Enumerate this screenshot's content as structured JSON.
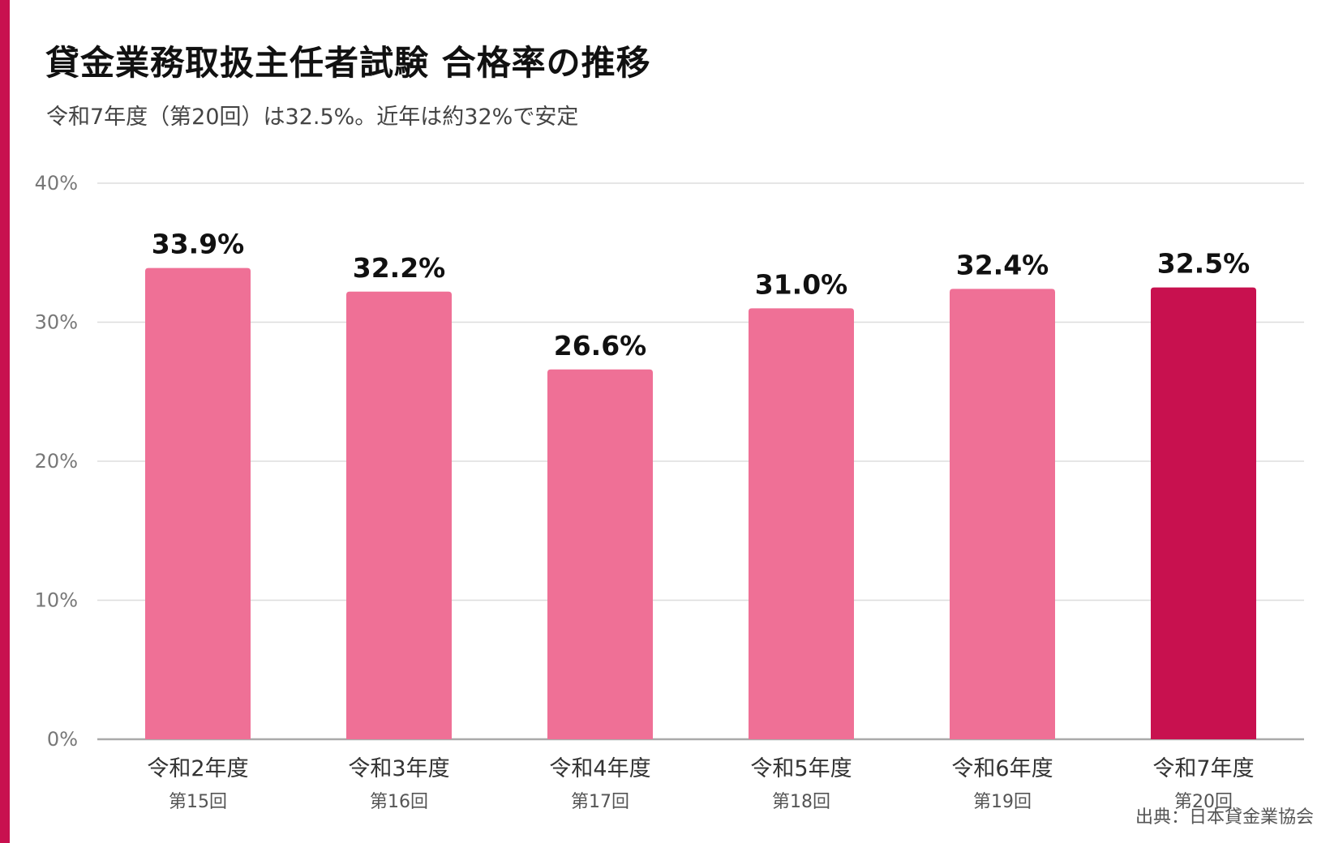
{
  "colors": {
    "accent": "#c8114f",
    "bar": "#ef7096",
    "bar_highlight": "#c8114f",
    "grid": "#dddddd",
    "axis": "#aaaaaa"
  },
  "chart_data": {
    "type": "bar",
    "title": "貸金業務取扱主任者試験 合格率の推移",
    "subtitle": "令和7年度（第20回）は32.5%。近年は約32%で安定",
    "categories": [
      "令和2年度",
      "令和3年度",
      "令和4年度",
      "令和5年度",
      "令和6年度",
      "令和7年度"
    ],
    "category_sublabels": [
      "第15回",
      "第16回",
      "第17回",
      "第18回",
      "第19回",
      "第20回"
    ],
    "values": [
      33.9,
      32.2,
      26.6,
      31.0,
      32.4,
      32.5
    ],
    "value_labels": [
      "33.9%",
      "32.2%",
      "26.6%",
      "31.0%",
      "32.4%",
      "32.5%"
    ],
    "highlight_index": 5,
    "ylim": [
      0,
      40
    ],
    "yticks": [
      0,
      10,
      20,
      30,
      40
    ],
    "ytick_labels": [
      "0%",
      "10%",
      "20%",
      "30%",
      "40%"
    ],
    "xlabel": "",
    "ylabel": "",
    "grid": true,
    "source": "出典：日本貸金業協会"
  }
}
